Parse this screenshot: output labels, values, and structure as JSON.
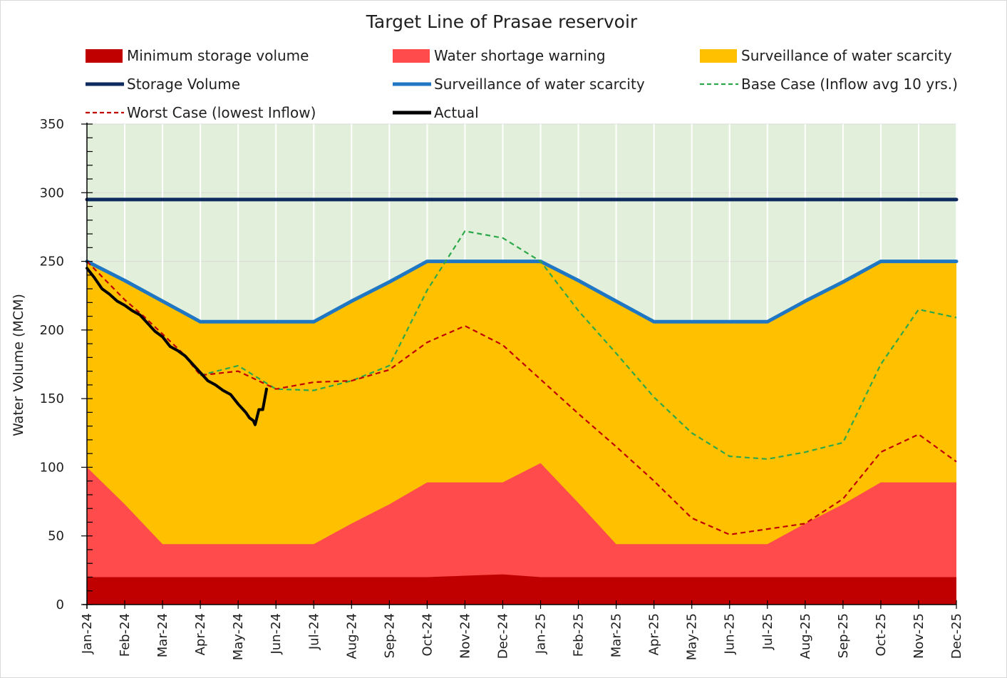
{
  "chart_data": {
    "type": "area",
    "title": "Target Line of Prasae reservoir",
    "ylabel": "Water Volume (MCM)",
    "xlabel": "",
    "ylim": [
      0,
      350
    ],
    "yticks": [
      0,
      50,
      100,
      150,
      200,
      250,
      300,
      350
    ],
    "categories": [
      "Jan-24",
      "Feb-24",
      "Mar-24",
      "Apr-24",
      "May-24",
      "Jun-24",
      "Jul-24",
      "Aug-24",
      "Sep-24",
      "Oct-24",
      "Nov-24",
      "Dec-24",
      "Jan-25",
      "Feb-25",
      "Mar-25",
      "Apr-25",
      "May-25",
      "Jun-25",
      "Jul-25",
      "Aug-25",
      "Sep-25",
      "Oct-25",
      "Nov-25",
      "Dec-25"
    ],
    "background_color": "#e2efda",
    "legend": [
      {
        "name": "Minimum storage volume",
        "kind": "area"
      },
      {
        "name": "Water shortage warning",
        "kind": "area"
      },
      {
        "name": "Surveillance of water scarcity",
        "kind": "area"
      },
      {
        "name": "Storage Volume",
        "kind": "line"
      },
      {
        "name": "Surveillance of water scarcity",
        "kind": "line"
      },
      {
        "name": "Base Case (Inflow avg 10 yrs.)",
        "kind": "dashed"
      },
      {
        "name": "Worst Case (lowest Inflow)",
        "kind": "dashed"
      },
      {
        "name": "Actual",
        "kind": "line"
      }
    ],
    "areas": [
      {
        "name": "Surveillance of water scarcity",
        "color": "#ffc000",
        "values": [
          250,
          236,
          221,
          206,
          206,
          206,
          206,
          221,
          235,
          250,
          250,
          250,
          250,
          236,
          221,
          206,
          206,
          206,
          206,
          221,
          235,
          250,
          250,
          250
        ]
      },
      {
        "name": "Water shortage warning",
        "color": "#ff4b4b",
        "values": [
          100,
          73,
          44,
          44,
          44,
          44,
          44,
          59,
          73,
          89,
          89,
          89,
          103,
          74,
          44,
          44,
          44,
          44,
          44,
          59,
          73,
          89,
          89,
          89
        ]
      },
      {
        "name": "Minimum storage volume",
        "color": "#c00000",
        "values": [
          20,
          20,
          20,
          20,
          20,
          20,
          20,
          20,
          20,
          20,
          21,
          22,
          20,
          20,
          20,
          20,
          20,
          20,
          20,
          20,
          20,
          20,
          20,
          20
        ]
      }
    ],
    "lines": [
      {
        "name": "Storage Volume",
        "color": "#0d2b5e",
        "style": "solid",
        "values": [
          295,
          295,
          295,
          295,
          295,
          295,
          295,
          295,
          295,
          295,
          295,
          295,
          295,
          295,
          295,
          295,
          295,
          295,
          295,
          295,
          295,
          295,
          295,
          295
        ]
      },
      {
        "name": "Surveillance of water scarcity",
        "color": "#1f77c4",
        "style": "solid",
        "values": [
          250,
          236,
          221,
          206,
          206,
          206,
          206,
          221,
          235,
          250,
          250,
          250,
          250,
          236,
          221,
          206,
          206,
          206,
          206,
          221,
          235,
          250,
          250,
          250
        ]
      },
      {
        "name": "Base Case (Inflow avg 10 yrs.)",
        "color": "#2ca84a",
        "style": "dashed",
        "x": [
          3,
          4,
          5,
          6,
          7,
          8,
          9,
          10,
          11,
          12,
          13,
          14,
          15,
          16,
          17,
          18,
          19,
          20,
          21,
          22,
          23
        ],
        "values": [
          167,
          174,
          157,
          156,
          163,
          174,
          229,
          272,
          267,
          250,
          214,
          183,
          151,
          125,
          108,
          106,
          111,
          118,
          175,
          215,
          209
        ]
      },
      {
        "name": "Worst Case (lowest Inflow)",
        "color": "#c00000",
        "style": "dashed",
        "x": [
          0,
          0.5,
          1,
          1.5,
          2,
          2.5,
          3,
          4,
          5,
          6,
          7,
          8,
          9,
          10,
          11,
          12,
          13,
          14,
          15,
          16,
          17,
          18,
          19,
          20,
          21,
          22,
          23
        ],
        "values": [
          250,
          236,
          222,
          210,
          197,
          184,
          167,
          170,
          157,
          162,
          163,
          171,
          191,
          203,
          189,
          164,
          139,
          115,
          90,
          63,
          51,
          55,
          59,
          77,
          111,
          124,
          104
        ]
      },
      {
        "name": "Actual",
        "color": "#000000",
        "style": "solid",
        "x": [
          0,
          0.2,
          0.4,
          0.6,
          0.8,
          1.0,
          1.2,
          1.4,
          1.6,
          1.8,
          2.0,
          2.2,
          2.4,
          2.6,
          2.8,
          3.0,
          3.2,
          3.4,
          3.6,
          3.8,
          4.0,
          4.1,
          4.2,
          4.3,
          4.4,
          4.45,
          4.55,
          4.65,
          4.75
        ],
        "values": [
          245,
          238,
          230,
          226,
          221,
          218,
          214,
          211,
          205,
          199,
          195,
          188,
          185,
          181,
          175,
          169,
          163,
          160,
          156,
          153,
          146,
          143,
          140,
          136,
          134,
          131,
          142,
          142,
          157
        ]
      }
    ]
  }
}
